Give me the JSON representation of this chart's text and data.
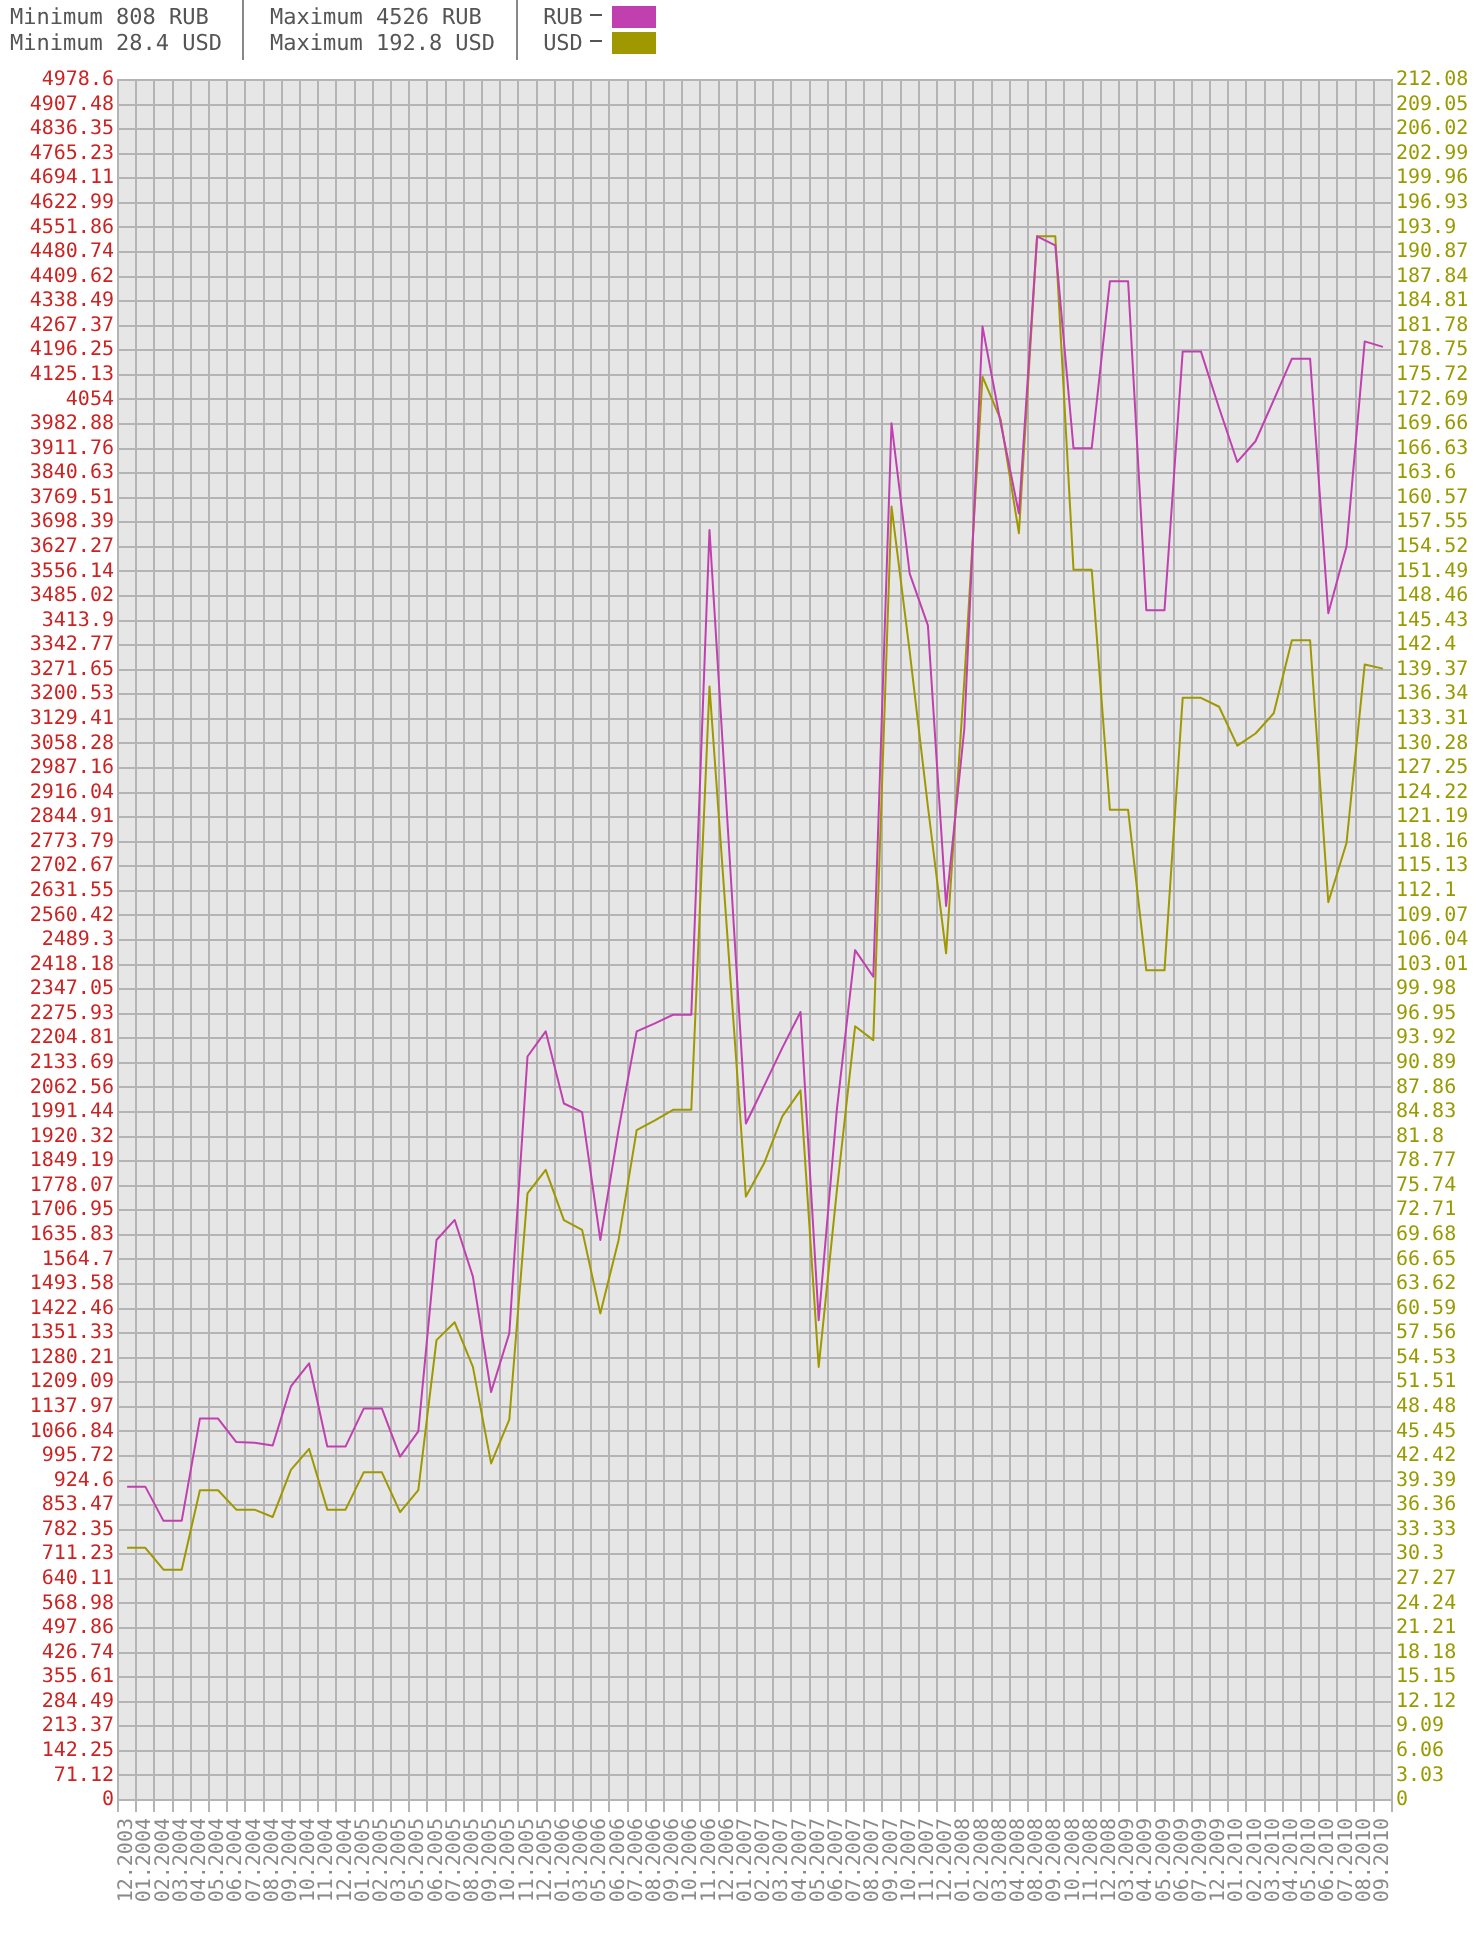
{
  "chart_data": {
    "type": "line",
    "annotations": [
      "Minimum 808 RUB",
      "Minimum 28.4 USD",
      "Maximum 4526 RUB",
      "Maximum 192.8 USD"
    ],
    "categories": [
      "12.2003",
      "01.2004",
      "02.2004",
      "03.2004",
      "04.2004",
      "05.2004",
      "06.2004",
      "07.2004",
      "08.2004",
      "09.2004",
      "10.2004",
      "11.2004",
      "12.2004",
      "01.2005",
      "02.2005",
      "03.2005",
      "05.2005",
      "06.2005",
      "07.2005",
      "08.2005",
      "09.2005",
      "10.2005",
      "11.2005",
      "12.2005",
      "01.2006",
      "03.2006",
      "05.2006",
      "06.2006",
      "07.2006",
      "08.2006",
      "09.2006",
      "10.2006",
      "11.2006",
      "12.2006",
      "01.2007",
      "02.2007",
      "03.2007",
      "04.2007",
      "05.2007",
      "06.2007",
      "07.2007",
      "08.2007",
      "09.2007",
      "10.2007",
      "11.2007",
      "12.2007",
      "01.2008",
      "02.2008",
      "03.2008",
      "04.2008",
      "08.2008",
      "09.2008",
      "10.2008",
      "11.2008",
      "12.2008",
      "03.2009",
      "04.2009",
      "05.2009",
      "06.2009",
      "07.2009",
      "12.2009",
      "01.2010",
      "02.2010",
      "03.2010",
      "04.2010",
      "05.2010",
      "06.2010",
      "07.2010",
      "08.2010",
      "09.2010"
    ],
    "series": [
      {
        "name": "RUB",
        "color": "#c040b0",
        "values": [
          907,
          907,
          808,
          808,
          1104,
          1104,
          1036,
          1034,
          1026,
          1197,
          1264,
          1023,
          1023,
          1133,
          1133,
          994,
          1067,
          1621,
          1679,
          1515,
          1181,
          1351,
          2152,
          2225,
          2016,
          1991,
          1621,
          1939,
          2225,
          2248,
          2273,
          2273,
          3676,
          2820,
          1958,
          2067,
          2177,
          2281,
          1389,
          2000,
          2460,
          2383,
          3985,
          3550,
          3400,
          2588,
          3100,
          4265,
          3985,
          3724,
          4526,
          4500,
          3913,
          3913,
          4396,
          4396,
          3444,
          3444,
          4193,
          4193,
          4029,
          3873,
          3933,
          4052,
          4172,
          4172,
          3435,
          3628,
          4222,
          4206
        ]
      },
      {
        "name": "USD",
        "color": "#a09800",
        "axis": "y2",
        "values": [
          31.1,
          31.1,
          28.4,
          28.4,
          38.2,
          38.2,
          35.8,
          35.8,
          34.9,
          40.7,
          43.3,
          35.8,
          35.8,
          40.4,
          40.4,
          35.5,
          38.2,
          56.7,
          58.9,
          53.4,
          41.5,
          46.9,
          74.8,
          77.7,
          71.5,
          70.3,
          60,
          69,
          82.6,
          83.8,
          85.1,
          85.1,
          137.3,
          106,
          74.4,
          78.5,
          84.3,
          87.5,
          53.4,
          75.2,
          95.4,
          93.7,
          159.5,
          141.6,
          122.5,
          104.4,
          138,
          175.5,
          170.2,
          156.2,
          192.8,
          192.8,
          151.7,
          151.7,
          122.1,
          122.1,
          102.3,
          102.3,
          135.9,
          135.9,
          134.8,
          130,
          131.5,
          134,
          143,
          143,
          110.7,
          118,
          140,
          139.5
        ]
      }
    ],
    "ylim": [
      0,
      4978.6
    ],
    "yticks": [
      0,
      71.12,
      142.25,
      213.37,
      284.49,
      355.61,
      426.74,
      497.86,
      568.98,
      640.11,
      711.23,
      782.35,
      853.47,
      924.6,
      995.72,
      1066.84,
      1137.97,
      1209.09,
      1280.21,
      1351.33,
      1422.46,
      1493.58,
      1564.7,
      1635.83,
      1706.95,
      1778.07,
      1849.19,
      1920.32,
      1991.44,
      2062.56,
      2133.69,
      2204.81,
      2275.93,
      2347.05,
      2418.18,
      2489.3,
      2560.42,
      2631.55,
      2702.67,
      2773.79,
      2844.91,
      2916.04,
      2987.16,
      3058.28,
      3129.41,
      3200.53,
      3271.65,
      3342.77,
      3413.9,
      3485.02,
      3556.14,
      3627.27,
      3698.39,
      3769.51,
      3840.63,
      3911.76,
      3982.88,
      4054,
      4125.13,
      4196.25,
      4267.37,
      4338.49,
      4409.62,
      4480.74,
      4551.86,
      4622.99,
      4694.11,
      4765.23,
      4836.35,
      4907.48,
      4978.6
    ],
    "y2lim": [
      0,
      212.08
    ],
    "y2ticks": [
      0,
      3.03,
      6.06,
      9.09,
      12.12,
      15.15,
      18.18,
      21.21,
      24.24,
      27.27,
      30.3,
      33.33,
      36.36,
      39.39,
      42.42,
      45.45,
      48.48,
      51.51,
      54.53,
      57.56,
      60.59,
      63.62,
      66.65,
      69.68,
      72.71,
      75.74,
      78.77,
      81.8,
      84.83,
      87.86,
      90.89,
      93.92,
      96.95,
      99.98,
      103.01,
      106.04,
      109.07,
      112.1,
      115.13,
      118.16,
      121.19,
      124.22,
      127.25,
      130.28,
      133.31,
      136.34,
      139.37,
      142.4,
      145.43,
      148.46,
      151.49,
      154.52,
      157.55,
      160.57,
      163.6,
      166.63,
      169.66,
      172.69,
      175.72,
      178.75,
      181.78,
      184.81,
      187.84,
      190.87,
      193.9,
      196.93,
      199.96,
      202.99,
      206.02,
      209.05,
      212.08
    ],
    "grid": true,
    "legend": "top left",
    "marker": "none"
  }
}
